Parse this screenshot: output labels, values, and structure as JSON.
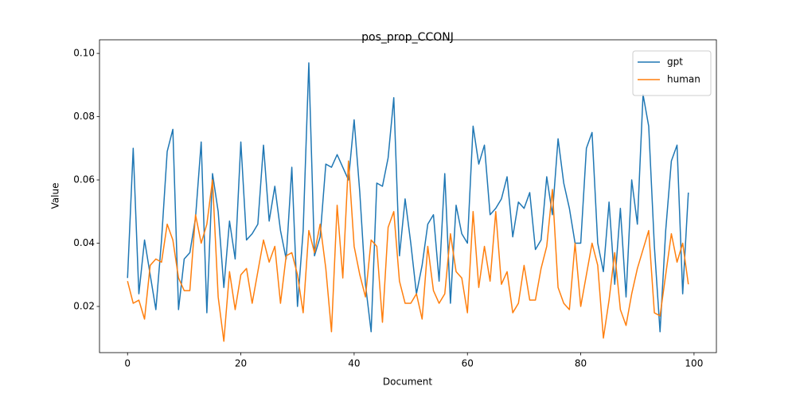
{
  "chart_data": {
    "type": "line",
    "title": "pos_prop_CCONJ",
    "xlabel": "Document",
    "ylabel": "Value",
    "x": [
      0,
      1,
      2,
      3,
      4,
      5,
      6,
      7,
      8,
      9,
      10,
      11,
      12,
      13,
      14,
      15,
      16,
      17,
      18,
      19,
      20,
      21,
      22,
      23,
      24,
      25,
      26,
      27,
      28,
      29,
      30,
      31,
      32,
      33,
      34,
      35,
      36,
      37,
      38,
      39,
      40,
      41,
      42,
      43,
      44,
      45,
      46,
      47,
      48,
      49,
      50,
      51,
      52,
      53,
      54,
      55,
      56,
      57,
      58,
      59,
      60,
      61,
      62,
      63,
      64,
      65,
      66,
      67,
      68,
      69,
      70,
      71,
      72,
      73,
      74,
      75,
      76,
      77,
      78,
      79,
      80,
      81,
      82,
      83,
      84,
      85,
      86,
      87,
      88,
      89,
      90,
      91,
      92,
      93,
      94,
      95,
      96,
      97,
      98,
      99
    ],
    "series": [
      {
        "name": "gpt",
        "color": "#1f77b4",
        "values": [
          0.029,
          0.07,
          0.024,
          0.041,
          0.03,
          0.019,
          0.041,
          0.069,
          0.076,
          0.019,
          0.035,
          0.037,
          0.048,
          0.072,
          0.018,
          0.062,
          0.05,
          0.026,
          0.047,
          0.035,
          0.072,
          0.041,
          0.043,
          0.046,
          0.071,
          0.047,
          0.058,
          0.044,
          0.035,
          0.064,
          0.02,
          0.044,
          0.097,
          0.036,
          0.042,
          0.065,
          0.064,
          0.068,
          0.064,
          0.06,
          0.079,
          0.056,
          0.027,
          0.012,
          0.059,
          0.058,
          0.067,
          0.086,
          0.036,
          0.054,
          0.04,
          0.024,
          0.033,
          0.046,
          0.049,
          0.028,
          0.062,
          0.021,
          0.052,
          0.043,
          0.04,
          0.077,
          0.065,
          0.071,
          0.049,
          0.051,
          0.054,
          0.061,
          0.042,
          0.053,
          0.051,
          0.056,
          0.038,
          0.041,
          0.061,
          0.049,
          0.073,
          0.059,
          0.051,
          0.04,
          0.04,
          0.07,
          0.075,
          0.04,
          0.031,
          0.053,
          0.027,
          0.051,
          0.023,
          0.06,
          0.046,
          0.087,
          0.077,
          0.039,
          0.012,
          0.044,
          0.066,
          0.071,
          0.024,
          0.056
        ]
      },
      {
        "name": "human",
        "color": "#ff7f0e",
        "values": [
          0.028,
          0.021,
          0.022,
          0.016,
          0.033,
          0.035,
          0.034,
          0.046,
          0.041,
          0.029,
          0.025,
          0.025,
          0.049,
          0.04,
          0.046,
          0.06,
          0.023,
          0.009,
          0.031,
          0.019,
          0.03,
          0.032,
          0.021,
          0.031,
          0.041,
          0.034,
          0.039,
          0.021,
          0.036,
          0.037,
          0.03,
          0.018,
          0.044,
          0.037,
          0.046,
          0.032,
          0.012,
          0.052,
          0.029,
          0.066,
          0.039,
          0.03,
          0.023,
          0.041,
          0.039,
          0.015,
          0.045,
          0.05,
          0.028,
          0.021,
          0.021,
          0.024,
          0.016,
          0.039,
          0.025,
          0.021,
          0.024,
          0.043,
          0.031,
          0.029,
          0.018,
          0.05,
          0.026,
          0.039,
          0.028,
          0.05,
          0.027,
          0.031,
          0.018,
          0.021,
          0.033,
          0.022,
          0.022,
          0.032,
          0.039,
          0.057,
          0.026,
          0.021,
          0.019,
          0.04,
          0.02,
          0.03,
          0.04,
          0.033,
          0.01,
          0.022,
          0.037,
          0.019,
          0.014,
          0.024,
          0.032,
          0.038,
          0.044,
          0.018,
          0.017,
          0.03,
          0.043,
          0.034,
          0.04,
          0.027
        ]
      }
    ],
    "xlim": [
      -4.95,
      103.95
    ],
    "ylim": [
      0.0054,
      0.1043
    ],
    "xticks": [
      0,
      20,
      40,
      60,
      80,
      100
    ],
    "yticks": [
      {
        "value": 0.02,
        "label": "0.02"
      },
      {
        "value": 0.04,
        "label": "0.04"
      },
      {
        "value": 0.06,
        "label": "0.06"
      },
      {
        "value": 0.08,
        "label": "0.08"
      },
      {
        "value": 0.1,
        "label": "0.10"
      }
    ],
    "legend": "upper right"
  }
}
